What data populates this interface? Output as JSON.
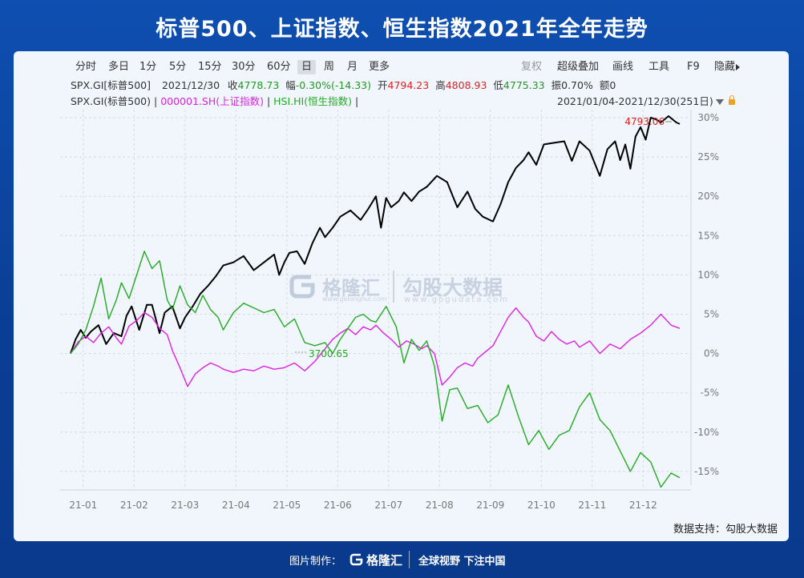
{
  "title": "标普500、上证指数、恒生指数2021年全年走势",
  "toolbar": {
    "left": [
      "分时",
      "多日",
      "1分",
      "5分",
      "15分",
      "30分",
      "60分",
      "日",
      "周",
      "月",
      "更多"
    ],
    "active": "日",
    "right": [
      "复权",
      "超级叠加",
      "画线",
      "工具",
      "F9",
      "隐藏"
    ]
  },
  "info": {
    "code": "SPX.GI[标普500]",
    "date": "2021/12/30",
    "close_label": "收",
    "close": "4778.73",
    "change_label": "幅",
    "change": "-0.30%(-14.33)",
    "open_label": "开",
    "open": "4794.23",
    "high_label": "高",
    "high": "4808.93",
    "low_label": "低",
    "low": "4775.33",
    "amp_label": "振",
    "amp": "0.70%",
    "vol_label": "额",
    "vol": "0"
  },
  "legend": {
    "spx": "SPX.GI(标普500)",
    "sep": "|",
    "sh": "000001.SH(上证指数)",
    "hsi": "HSI.HI(恒生指数)",
    "range": "2021/01/04-2021/12/30(251日)"
  },
  "annotations": {
    "max_label": "4793.06",
    "min_label": "3700.65"
  },
  "watermark": {
    "brand": "格隆汇",
    "brand_url": "www.gelonghui.com",
    "partner": "勾股大数据",
    "partner_url": "www.gogudata.com"
  },
  "source": "数据支持：勾股大数据",
  "footer": {
    "made_by": "图片制作：",
    "brand": "格隆汇",
    "slogan": "全球视野 下注中国"
  },
  "colors": {
    "spx": "#000000",
    "sh": "#e020e0",
    "hsi": "#22aa22",
    "grid": "#d3dae3",
    "background": "#0e4fb0"
  },
  "chart_data": {
    "type": "line",
    "title": "标普500、上证指数、恒生指数2021年全年走势",
    "xlabel": "",
    "ylabel": "",
    "x_ticks": [
      "21-01",
      "21-02",
      "21-03",
      "21-04",
      "21-05",
      "21-06",
      "21-07",
      "21-08",
      "21-09",
      "21-10",
      "21-11",
      "21-12"
    ],
    "y_ticks": [
      "30%",
      "25%",
      "20%",
      "15%",
      "10%",
      "5%",
      "0%",
      "-5%",
      "-10%",
      "-15%"
    ],
    "ylim": [
      -18,
      30
    ],
    "grid": true,
    "x_unit": "month (2021, fractional)",
    "series": [
      {
        "name": "SPX.GI(标普500)",
        "color": "#000000",
        "x": [
          0.0,
          0.1,
          0.2,
          0.3,
          0.4,
          0.55,
          0.7,
          0.85,
          1.0,
          1.1,
          1.2,
          1.35,
          1.5,
          1.6,
          1.75,
          1.85,
          2.0,
          2.15,
          2.25,
          2.4,
          2.55,
          2.7,
          2.85,
          3.0,
          3.2,
          3.4,
          3.6,
          3.8,
          4.0,
          4.1,
          4.2,
          4.3,
          4.45,
          4.6,
          4.75,
          4.9,
          5.0,
          5.15,
          5.3,
          5.5,
          5.7,
          5.85,
          6.0,
          6.1,
          6.2,
          6.3,
          6.45,
          6.55,
          6.7,
          6.85,
          7.0,
          7.2,
          7.4,
          7.6,
          7.8,
          7.95,
          8.1,
          8.3,
          8.45,
          8.6,
          8.75,
          8.9,
          9.0,
          9.15,
          9.3,
          9.5,
          9.7,
          9.85,
          10.0,
          10.2,
          10.4,
          10.55,
          10.7,
          10.8,
          10.9,
          11.0,
          11.1,
          11.2,
          11.3,
          11.4,
          11.5,
          11.6,
          11.75,
          11.9,
          11.97
        ],
        "values": [
          0.0,
          1.8,
          3.0,
          2.0,
          2.8,
          3.6,
          1.2,
          2.6,
          2.2,
          4.8,
          6.0,
          3.0,
          6.2,
          6.2,
          2.6,
          5.2,
          6.0,
          3.2,
          4.6,
          6.0,
          7.6,
          8.6,
          9.8,
          11.2,
          11.6,
          12.4,
          10.6,
          11.6,
          12.6,
          10.0,
          11.6,
          12.8,
          13.0,
          11.4,
          14.0,
          16.0,
          14.8,
          16.0,
          17.4,
          18.2,
          17.0,
          18.4,
          20.0,
          16.0,
          19.8,
          18.6,
          19.4,
          20.5,
          19.4,
          20.6,
          21.2,
          22.6,
          21.8,
          18.6,
          20.6,
          18.4,
          17.4,
          16.8,
          19.0,
          21.8,
          23.6,
          24.6,
          25.6,
          24.0,
          26.6,
          26.8,
          27.0,
          24.5,
          27.0,
          25.8,
          22.6,
          26.0,
          27.0,
          24.6,
          26.6,
          23.5,
          27.6,
          28.8,
          27.2,
          30.0,
          29.8,
          29.4,
          30.2,
          29.4,
          29.2
        ]
      },
      {
        "name": "000001.SH(上证指数)",
        "color": "#e020e0",
        "x": [
          0.0,
          0.15,
          0.3,
          0.45,
          0.6,
          0.75,
          0.9,
          1.0,
          1.15,
          1.3,
          1.45,
          1.6,
          1.75,
          1.9,
          2.0,
          2.15,
          2.3,
          2.45,
          2.6,
          2.75,
          2.9,
          3.0,
          3.2,
          3.4,
          3.6,
          3.8,
          4.0,
          4.2,
          4.4,
          4.6,
          4.8,
          5.0,
          5.15,
          5.3,
          5.45,
          5.6,
          5.75,
          5.9,
          6.0,
          6.15,
          6.3,
          6.45,
          6.6,
          6.75,
          6.9,
          7.0,
          7.15,
          7.3,
          7.45,
          7.6,
          7.75,
          7.9,
          8.0,
          8.15,
          8.3,
          8.45,
          8.6,
          8.75,
          8.9,
          9.0,
          9.15,
          9.3,
          9.45,
          9.6,
          9.75,
          9.9,
          10.0,
          10.2,
          10.4,
          10.6,
          10.8,
          11.0,
          11.2,
          11.4,
          11.6,
          11.8,
          11.97
        ],
        "values": [
          0.0,
          1.5,
          2.2,
          1.4,
          2.6,
          3.4,
          2.0,
          1.2,
          3.5,
          4.2,
          5.2,
          4.6,
          3.2,
          2.4,
          0.4,
          -1.8,
          -4.2,
          -2.6,
          -1.8,
          -1.2,
          -1.6,
          -2.0,
          -2.4,
          -2.0,
          -2.2,
          -1.6,
          -2.0,
          -1.8,
          -1.2,
          -2.2,
          -1.0,
          0.6,
          1.8,
          2.6,
          3.2,
          2.4,
          3.4,
          3.0,
          3.6,
          2.6,
          1.8,
          0.8,
          1.6,
          1.2,
          0.6,
          1.0,
          0.0,
          -4.0,
          -3.0,
          -1.8,
          -1.2,
          -1.6,
          -0.6,
          0.2,
          1.0,
          2.8,
          4.6,
          5.8,
          4.6,
          4.0,
          2.2,
          1.6,
          2.8,
          1.8,
          1.2,
          1.6,
          0.8,
          1.6,
          0.0,
          1.2,
          0.6,
          1.8,
          2.6,
          3.6,
          5.0,
          3.6,
          3.2
        ]
      },
      {
        "name": "HSI.HI(恒生指数)",
        "color": "#22aa22",
        "x": [
          0.0,
          0.15,
          0.3,
          0.45,
          0.6,
          0.75,
          0.9,
          1.0,
          1.15,
          1.3,
          1.45,
          1.6,
          1.75,
          1.9,
          2.0,
          2.15,
          2.3,
          2.45,
          2.6,
          2.75,
          2.9,
          3.0,
          3.2,
          3.4,
          3.6,
          3.8,
          4.0,
          4.2,
          4.4,
          4.6,
          4.8,
          5.0,
          5.15,
          5.3,
          5.45,
          5.6,
          5.75,
          5.9,
          6.0,
          6.2,
          6.4,
          6.55,
          6.7,
          6.85,
          7.0,
          7.15,
          7.3,
          7.45,
          7.6,
          7.8,
          8.0,
          8.2,
          8.4,
          8.6,
          8.8,
          9.0,
          9.2,
          9.4,
          9.6,
          9.8,
          10.0,
          10.2,
          10.4,
          10.6,
          10.8,
          11.0,
          11.2,
          11.4,
          11.6,
          11.8,
          11.97
        ],
        "values": [
          0.0,
          1.2,
          3.0,
          6.0,
          9.6,
          4.4,
          6.8,
          9.0,
          7.0,
          10.0,
          13.0,
          10.8,
          11.8,
          6.8,
          5.6,
          8.6,
          6.2,
          5.2,
          7.4,
          5.6,
          4.6,
          3.0,
          5.2,
          6.4,
          5.8,
          5.2,
          5.6,
          3.4,
          4.4,
          1.4,
          1.0,
          1.4,
          0.0,
          1.8,
          3.2,
          4.6,
          5.0,
          4.2,
          4.0,
          6.0,
          3.4,
          -1.2,
          1.8,
          0.4,
          1.6,
          -1.6,
          -8.6,
          -4.6,
          -4.4,
          -7.0,
          -6.6,
          -8.8,
          -7.8,
          -4.0,
          -8.0,
          -11.6,
          -9.8,
          -12.2,
          -10.4,
          -9.8,
          -6.8,
          -5.0,
          -8.4,
          -9.8,
          -12.4,
          -15.0,
          -12.6,
          -13.8,
          -17.0,
          -15.2,
          -15.8
        ]
      }
    ]
  }
}
